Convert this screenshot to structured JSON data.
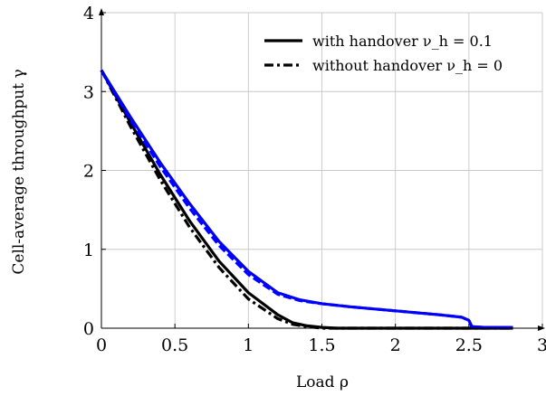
{
  "chart_data": {
    "type": "line",
    "xlabel": "Load ρ",
    "ylabel": "Cell-average throughput γ",
    "xlim": [
      0,
      3
    ],
    "ylim": [
      0,
      4
    ],
    "xticks": [
      "0",
      "0.5",
      "1",
      "1.5",
      "2",
      "2.5",
      "3"
    ],
    "yticks": [
      "0",
      "1",
      "2",
      "3",
      "4"
    ],
    "grid": true,
    "legend_position": "top-right",
    "legend": [
      {
        "label": "with handover ν_h = 0.1",
        "style": "solid"
      },
      {
        "label": "without handover ν_h = 0",
        "style": "dash-dot"
      }
    ],
    "series": [
      {
        "color": "#000000",
        "dash": "solid",
        "x": [
          0,
          0.2,
          0.4,
          0.6,
          0.8,
          1.0,
          1.2,
          1.3,
          1.4,
          1.5,
          1.6,
          1.8,
          2.0,
          2.5,
          2.8
        ],
        "y": [
          3.27,
          2.6,
          1.95,
          1.36,
          0.85,
          0.45,
          0.17,
          0.07,
          0.03,
          0.01,
          0.0,
          0.0,
          0.0,
          0.0,
          0.0
        ]
      },
      {
        "color": "#000000",
        "dash": "dashdot",
        "x": [
          0,
          0.2,
          0.4,
          0.6,
          0.8,
          1.0,
          1.2,
          1.3,
          1.4,
          1.5,
          1.6,
          2.0,
          2.5,
          2.8
        ],
        "y": [
          3.27,
          2.55,
          1.88,
          1.28,
          0.77,
          0.37,
          0.12,
          0.05,
          0.02,
          0.0,
          0.0,
          0.0,
          0.0,
          0.0
        ]
      },
      {
        "color": "#0000ff",
        "dash": "solid",
        "x": [
          0,
          0.2,
          0.4,
          0.6,
          0.8,
          1.0,
          1.2,
          1.35,
          1.5,
          1.7,
          2.0,
          2.3,
          2.45,
          2.5,
          2.52,
          2.6,
          2.8
        ],
        "y": [
          3.27,
          2.67,
          2.1,
          1.58,
          1.1,
          0.72,
          0.45,
          0.36,
          0.31,
          0.27,
          0.22,
          0.17,
          0.14,
          0.1,
          0.02,
          0.01,
          0.01
        ]
      },
      {
        "color": "#0000ff",
        "dash": "dashed",
        "x": [
          0,
          0.2,
          0.4,
          0.6,
          0.8,
          1.0,
          1.2,
          1.35,
          1.5,
          1.7,
          2.0,
          2.3,
          2.45,
          2.5,
          2.52,
          2.6
        ],
        "y": [
          3.27,
          2.64,
          2.05,
          1.52,
          1.05,
          0.68,
          0.43,
          0.35,
          0.31,
          0.27,
          0.22,
          0.17,
          0.14,
          0.1,
          0.02,
          0.01
        ]
      }
    ]
  }
}
